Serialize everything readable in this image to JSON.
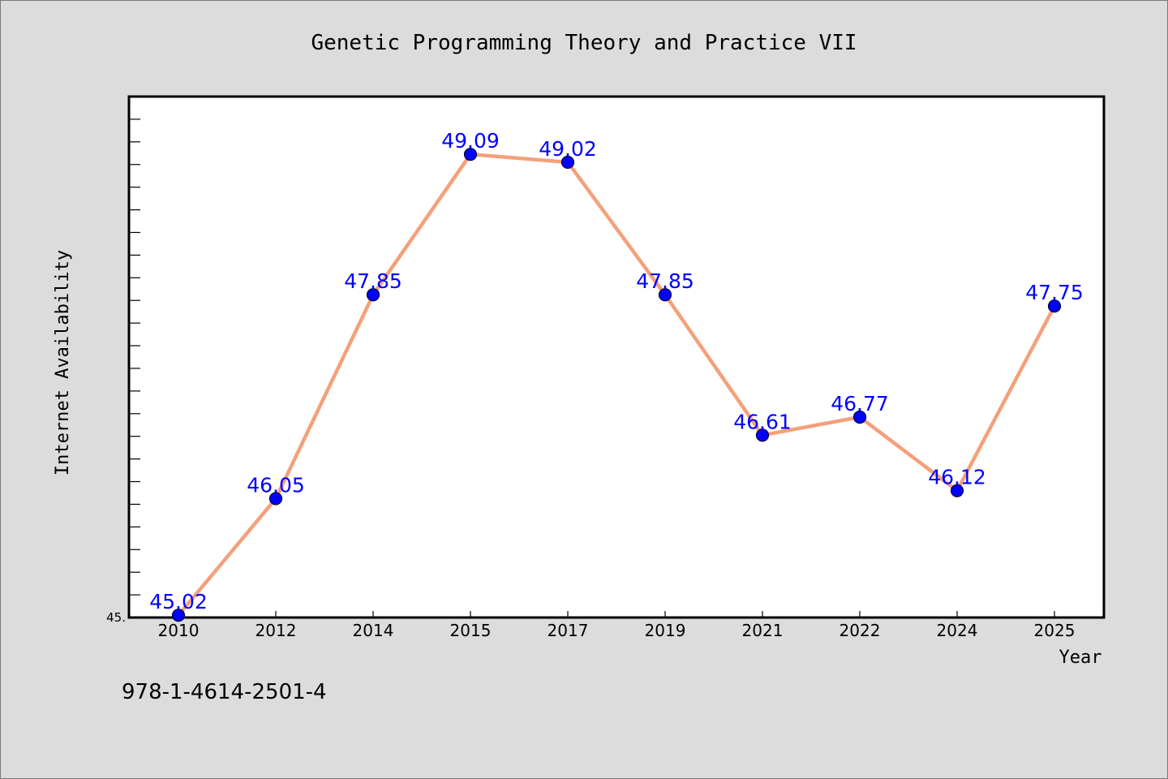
{
  "chart_data": {
    "type": "line",
    "title": "Genetic Programming Theory and Practice VII",
    "xlabel": "Year",
    "ylabel": "Internet Availability",
    "categories": [
      "2010",
      "2012",
      "2014",
      "2015",
      "2017",
      "2019",
      "2021",
      "2022",
      "2024",
      "2025"
    ],
    "values": [
      45.02,
      46.05,
      47.85,
      49.09,
      49.02,
      47.85,
      46.61,
      46.77,
      46.12,
      47.75
    ],
    "data_labels": [
      "45.02",
      "46.05",
      "47.85",
      "49.09",
      "49.02",
      "47.85",
      "46.61",
      "46.77",
      "46.12",
      "47.75"
    ],
    "ylim": [
      45.0,
      49.6
    ],
    "y_tick_labels": [
      "45."
    ],
    "grid": false,
    "legend": "none",
    "line_color": "#f4a07a",
    "marker_color": "#0000ff",
    "label_color": "#0000ff"
  },
  "footer": {
    "isbn": "978-1-4614-2501-4"
  }
}
